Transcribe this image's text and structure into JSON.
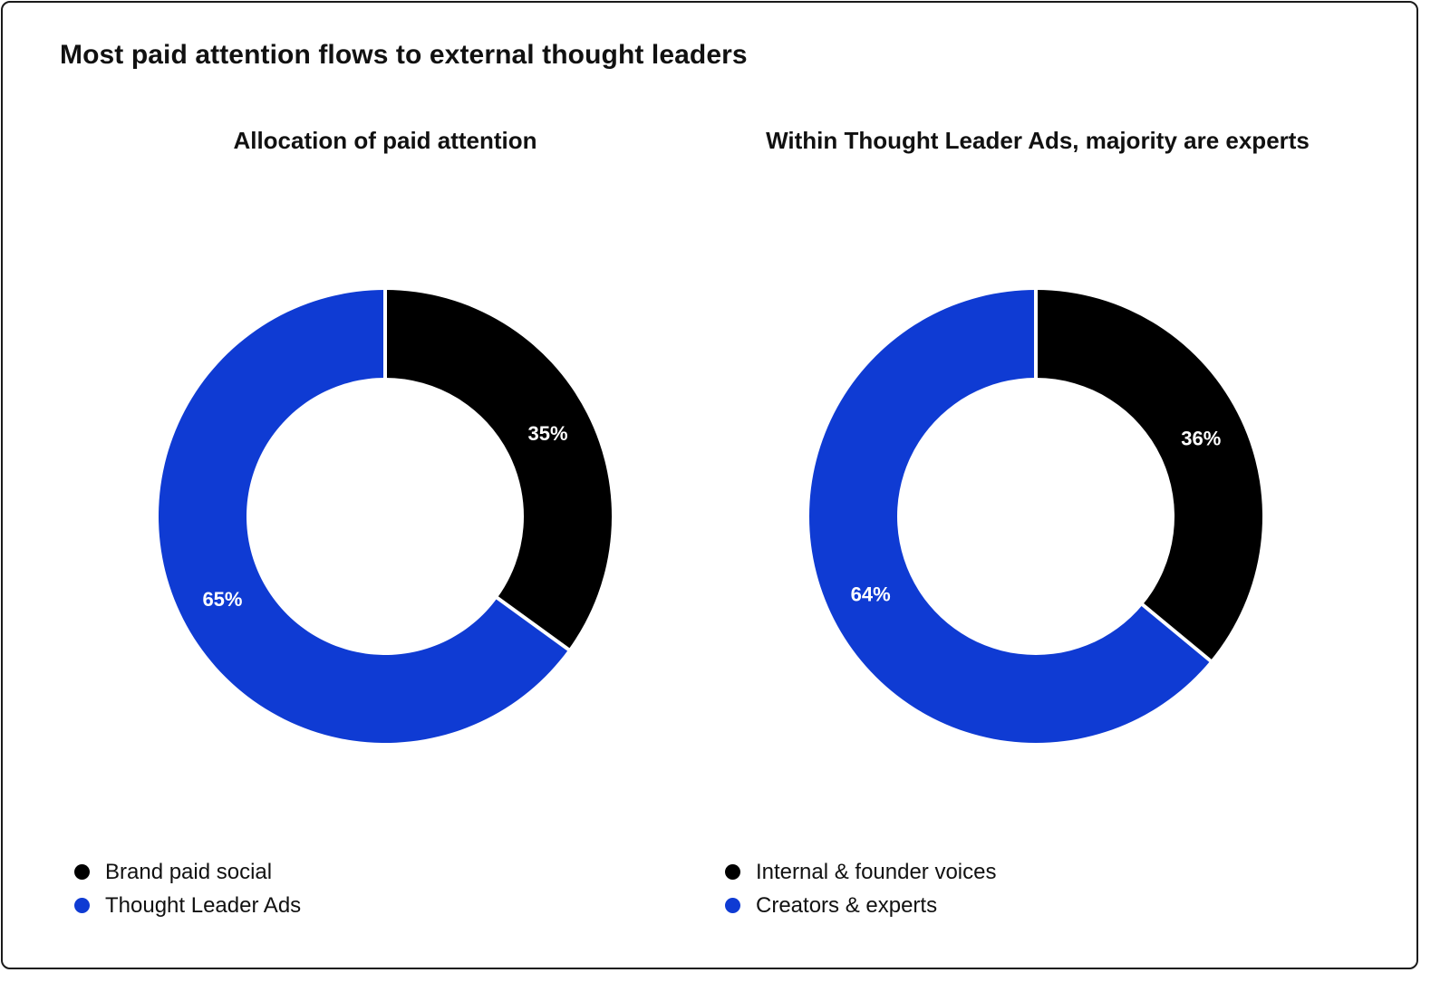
{
  "header": {
    "title": "Most paid attention flows to external thought leaders"
  },
  "colors": {
    "black": "#000000",
    "blue": "#0f3bd3",
    "separator": "#ffffff"
  },
  "chart_data": [
    {
      "type": "pie",
      "title": "Allocation of paid attention",
      "donut": true,
      "slices": [
        {
          "label": "Brand paid social",
          "value": 35,
          "display": "35%",
          "color": "#000000"
        },
        {
          "label": "Thought Leader Ads",
          "value": 65,
          "display": "65%",
          "color": "#0f3bd3"
        }
      ],
      "legend": [
        {
          "label": "Brand paid social",
          "color": "#000000"
        },
        {
          "label": "Thought Leader Ads",
          "color": "#0f3bd3"
        }
      ],
      "legend_position": "bottom-left"
    },
    {
      "type": "pie",
      "title": "Within Thought Leader Ads, majority are experts",
      "donut": true,
      "slices": [
        {
          "label": "Internal & founder voices",
          "value": 36,
          "display": "36%",
          "color": "#000000"
        },
        {
          "label": "Creators & experts",
          "value": 64,
          "display": "64%",
          "color": "#0f3bd3"
        }
      ],
      "legend": [
        {
          "label": "Internal & founder voices",
          "color": "#000000"
        },
        {
          "label": "Creators & experts",
          "color": "#0f3bd3"
        }
      ],
      "legend_position": "bottom-left"
    }
  ]
}
